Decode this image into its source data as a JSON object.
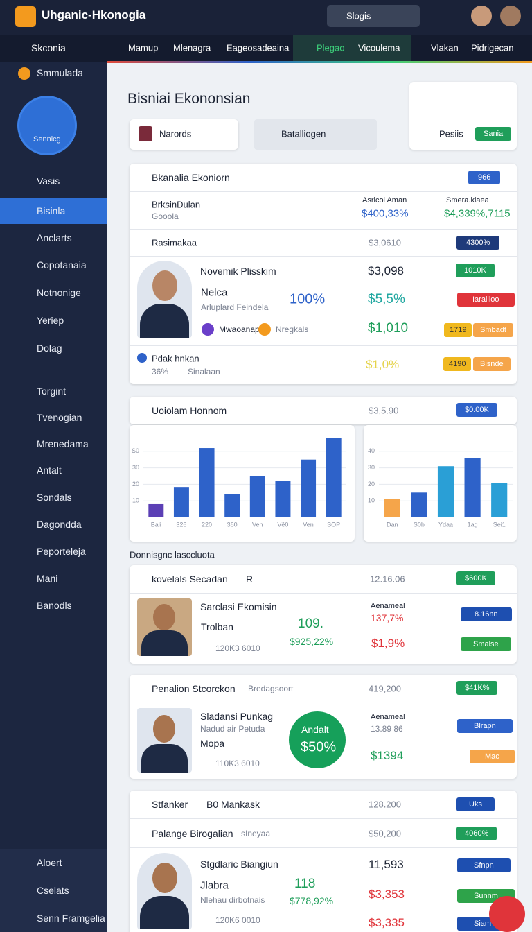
{
  "header": {
    "app_name": "Uhganic-Hkonogia",
    "search": "Slogis"
  },
  "nav": {
    "title": "Skconia",
    "tabs": [
      "Mamup",
      "Mlenagra",
      "Eageosadeaina",
      "Plegao",
      "Vicoulema",
      "Vlakan",
      "Pidrigecan"
    ]
  },
  "sidebar": {
    "top": "Smmulada",
    "badge": "Sennicg",
    "items": [
      "Vasis",
      "Bisinla",
      "Anclarts",
      "Copotanaia",
      "Notnonige",
      "Yeriep",
      "Dolag",
      "Torgint",
      "Tvenogian",
      "Mrenedama",
      "Antalt",
      "Sondals",
      "Dagondda",
      "Peporteleja",
      "Mani",
      "Banodls"
    ],
    "bottom": [
      "Aloert",
      "Cselats",
      "Senn Framgelia"
    ]
  },
  "page": {
    "title": "Bisniai Ekononsian",
    "button": "Narords",
    "dropdown": "Batalliogen",
    "action_label": "Pesiis",
    "action_button": "Sania"
  },
  "cards": [
    {
      "title": "Bkanalia Ekoniorn",
      "badge": "966",
      "summary": {
        "name": "BrksinDulan",
        "sub": "Gooola",
        "col1_label": "Asricoi Aman",
        "col1_value": "$400,33%",
        "col2_label": "Smera.klaea",
        "col2_value": "$4,339%,7115"
      },
      "section": {
        "title": "Rasimakaa",
        "value": "$3,0610",
        "badge": "4300%"
      },
      "person": {
        "name": "Novemik Plisskim",
        "tag": "Nelca",
        "role": "Arluplard Feindela",
        "pct": "100%",
        "chip1": "Mwaoanap",
        "chip2": "Nregkals",
        "v1": "$3,098",
        "v2": "$5,5%",
        "v3": "$1,010",
        "b1": "1010K",
        "b2": "Iaraliloo",
        "b3a": "1719",
        "b3b": "Smbadt"
      },
      "footer": {
        "name": "Pdak hnkan",
        "pct": "36%",
        "sub": "Sinalaan",
        "value": "$1,0%",
        "badge_a": "4190",
        "badge_b": "Bisnde"
      }
    },
    {
      "title": "Uoiolam Honnom",
      "value": "$3,5.90",
      "badge": "$0.00K",
      "charts": [
        {
          "type": "bar",
          "categories": [
            "Bali",
            "326",
            "220",
            "360",
            "Ven",
            "Vē0",
            "Ven",
            "SOP"
          ],
          "values": [
            8,
            18,
            42,
            14,
            25,
            22,
            35,
            48
          ],
          "colors": [
            "#5b3fb5",
            "#2e62c9",
            "#2e62c9",
            "#2e62c9",
            "#2e62c9",
            "#2e62c9",
            "#2e62c9",
            "#2e62c9"
          ],
          "ylim": [
            0,
            50
          ],
          "yticks": [
            10,
            20,
            30,
            {
              "value": 40,
              "label": "S0"
            }
          ],
          "grid": true
        },
        {
          "type": "bar",
          "categories": [
            "Dan",
            "S0b",
            "Ydaa",
            "1ag",
            "Sei1"
          ],
          "values": [
            11,
            15,
            31,
            36,
            21
          ],
          "colors": [
            "#f5a54a",
            "#2e62c9",
            "#2a9fd6",
            "#2e62c9",
            "#2a9fd6"
          ],
          "ylim": [
            0,
            50
          ],
          "yticks": [
            10,
            20,
            30,
            40
          ],
          "grid": true
        }
      ]
    },
    {
      "title": "kovelals Secadan",
      "tag": "R",
      "value": "12.16.06",
      "badge": "$600K",
      "person": {
        "name": "Sarclasi Ekomisin",
        "tag": "Trolban",
        "id": "120K3 6010",
        "score": "109.",
        "pct": "$925,22%",
        "label": "Aenameal",
        "v1": "137,7%",
        "v2": "$1,9%",
        "b1": "8.16nn",
        "b2": "Smalse"
      }
    },
    {
      "title": "Penalion Stcorckon",
      "tag": "Bredagsoort",
      "value": "419,200",
      "badge": "$41K%",
      "person": {
        "name": "Sladansi Punkag",
        "role": "Nadud air Petuda",
        "tag": "Mopa",
        "id": "110K3 6010",
        "circle_label": "Andalt",
        "circle_value": "$50%",
        "label": "Aenameal",
        "v1": "13.89 86",
        "v2": "$1394",
        "b1": "Blrapn",
        "b2": "Mac"
      }
    },
    {
      "title": "Stfanker",
      "tag": "B0 Mankask",
      "value": "128.200",
      "badge": "Uks",
      "row_title": "Palange Birogalian",
      "row_tag": "sIneyaa",
      "row_value": "$50,200",
      "row_badge": "4060%",
      "person": {
        "name": "Stgdlaric Biangiun",
        "tag": "Jlabra",
        "role": "Nlehau dirbotnais",
        "id": "120K6 0010",
        "score": "118",
        "pct": "$778,92%",
        "v1": "11,593",
        "v2": "$3,353",
        "v3": "$3,335",
        "b1": "Sfnpn",
        "b2": "Sunnm",
        "b3": "Siam"
      }
    }
  ],
  "section_label": "Donnisgnc lasccluota"
}
